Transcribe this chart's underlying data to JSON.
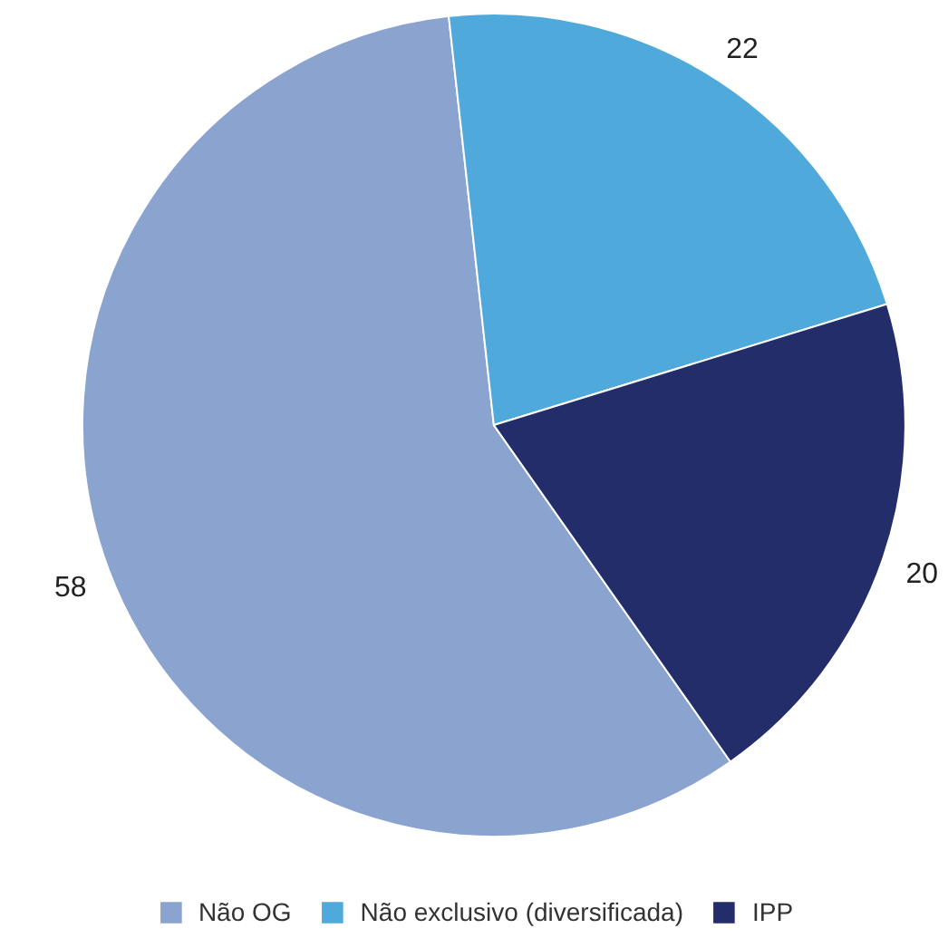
{
  "chart_data": {
    "type": "pie",
    "categories": [
      "Não OG",
      "Não exclusivo (diversificada)",
      "IPP"
    ],
    "values": [
      58,
      22,
      20
    ],
    "colors": [
      "#8aa3cf",
      "#4faadb",
      "#222d6a"
    ],
    "data_labels": true,
    "legend": "bottom"
  }
}
